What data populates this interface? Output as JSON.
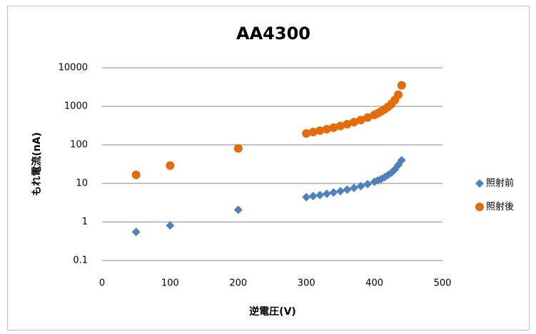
{
  "chart_data": {
    "type": "scatter",
    "title": "AA4300",
    "xlabel": "逆電圧(V)",
    "ylabel": "もれ電流(nA)",
    "xlim": [
      0,
      500
    ],
    "xticks": [
      0,
      100,
      200,
      300,
      400,
      500
    ],
    "ylim": [
      0.1,
      10000
    ],
    "yticks": [
      10000,
      1000,
      100,
      10,
      1,
      0.1
    ],
    "ylog": true,
    "grid": true,
    "legend": "right",
    "series": [
      {
        "name": "照射前",
        "color": "#4f81bd",
        "marker": "diamond",
        "x": [
          50,
          100,
          200,
          300,
          310,
          320,
          330,
          340,
          350,
          360,
          370,
          380,
          390,
          400,
          405,
          410,
          415,
          420,
          425,
          430,
          435,
          440
        ],
        "values": [
          0.55,
          0.81,
          2.06,
          4.4,
          4.7,
          5.0,
          5.4,
          5.8,
          6.3,
          6.9,
          7.6,
          8.5,
          9.6,
          11,
          12,
          13,
          14.5,
          16.5,
          19,
          23,
          30,
          40
        ]
      },
      {
        "name": "照射後",
        "color": "#e36c09",
        "marker": "circle",
        "x": [
          50,
          100,
          200,
          300,
          310,
          320,
          330,
          340,
          350,
          360,
          370,
          380,
          390,
          400,
          405,
          410,
          415,
          420,
          425,
          430,
          435,
          440
        ],
        "values": [
          16.7,
          29,
          81,
          198,
          215,
          235,
          255,
          280,
          310,
          345,
          390,
          440,
          510,
          600,
          660,
          740,
          840,
          970,
          1150,
          1450,
          2000,
          3500
        ]
      }
    ]
  }
}
